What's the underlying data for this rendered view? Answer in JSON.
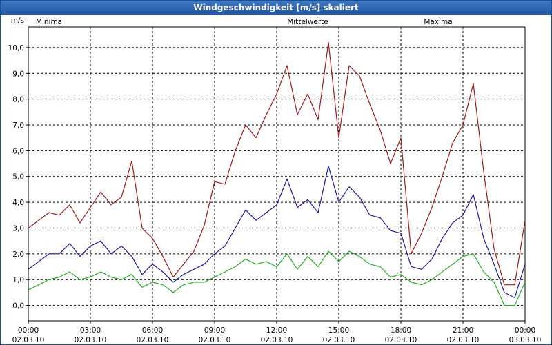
{
  "window": {
    "title": "Windgeschwindigkeit [m/s] skaliert"
  },
  "colors": {
    "minima": "#22b022",
    "mittel": "#1a1aa0",
    "maxima": "#a01818"
  },
  "chart_data": {
    "type": "line",
    "title": "Windgeschwindigkeit [m/s] skaliert",
    "ylabel": "m/s",
    "ylim": [
      -0.6,
      10.8
    ],
    "y_ticks": [
      "0,0",
      "1,0",
      "2,0",
      "3,0",
      "4,0",
      "5,0",
      "6,0",
      "7,0",
      "8,0",
      "9,0",
      "10,0"
    ],
    "xlim": [
      0,
      24
    ],
    "x_ticks": [
      {
        "time": "00:00",
        "date": "02.03.10"
      },
      {
        "time": "03:00",
        "date": "02.03.10"
      },
      {
        "time": "06:00",
        "date": "02.03.10"
      },
      {
        "time": "09:00",
        "date": "02.03.10"
      },
      {
        "time": "12:00",
        "date": "02.03.10"
      },
      {
        "time": "15:00",
        "date": "02.03.10"
      },
      {
        "time": "18:00",
        "date": "02.03.10"
      },
      {
        "time": "21:00",
        "date": "02.03.10"
      },
      {
        "time": "00:00",
        "date": "03.03.10"
      }
    ],
    "grid": true,
    "x_hours": [
      0,
      0.5,
      1,
      1.5,
      2,
      2.5,
      3,
      3.5,
      4,
      4.5,
      5,
      5.5,
      6,
      6.5,
      7,
      7.5,
      8,
      8.5,
      9,
      9.5,
      10,
      10.5,
      11,
      11.5,
      12,
      12.5,
      13,
      13.5,
      14,
      14.5,
      15,
      15.5,
      16,
      16.5,
      17,
      17.5,
      18,
      18.5,
      19,
      19.5,
      20,
      20.5,
      21,
      21.5,
      22,
      22.5,
      23,
      23.5,
      24
    ],
    "series": [
      {
        "name": "Minima",
        "values": [
          0.6,
          0.8,
          1.0,
          1.1,
          1.3,
          1.0,
          1.1,
          1.3,
          1.1,
          1.0,
          1.2,
          0.7,
          0.9,
          0.8,
          0.5,
          0.8,
          0.9,
          0.9,
          1.1,
          1.3,
          1.5,
          1.8,
          1.6,
          1.7,
          1.5,
          2.0,
          1.4,
          1.9,
          1.5,
          2.1,
          1.7,
          2.1,
          1.9,
          1.6,
          1.5,
          1.1,
          1.2,
          0.9,
          0.8,
          1.0,
          1.3,
          1.6,
          1.9,
          2.0,
          1.3,
          0.9,
          0.0,
          0.0,
          0.9
        ]
      },
      {
        "name": "Mittelwerte",
        "values": [
          1.4,
          1.7,
          2.0,
          2.0,
          2.4,
          1.9,
          2.3,
          2.5,
          2.0,
          2.3,
          1.9,
          1.2,
          1.6,
          1.3,
          0.9,
          1.2,
          1.4,
          1.6,
          2.0,
          2.3,
          3.0,
          3.7,
          3.3,
          3.6,
          3.9,
          4.9,
          3.8,
          4.1,
          3.6,
          5.4,
          4.0,
          4.6,
          4.2,
          3.5,
          3.4,
          2.9,
          2.8,
          1.5,
          1.4,
          1.8,
          2.6,
          3.2,
          3.5,
          4.3,
          2.6,
          1.6,
          0.5,
          0.3,
          1.6
        ]
      },
      {
        "name": "Maxima",
        "values": [
          3.0,
          3.3,
          3.6,
          3.5,
          3.9,
          3.2,
          3.8,
          4.4,
          3.9,
          4.2,
          5.6,
          3.0,
          2.6,
          1.9,
          1.1,
          1.6,
          2.1,
          3.1,
          4.8,
          4.7,
          6.0,
          7.0,
          6.5,
          7.4,
          8.2,
          9.3,
          7.4,
          8.2,
          7.2,
          10.2,
          6.5,
          9.3,
          8.9,
          7.8,
          6.8,
          5.5,
          6.5,
          2.0,
          2.8,
          3.8,
          5.0,
          6.3,
          7.0,
          8.6,
          5.2,
          2.2,
          0.8,
          0.8,
          3.3
        ]
      }
    ]
  }
}
